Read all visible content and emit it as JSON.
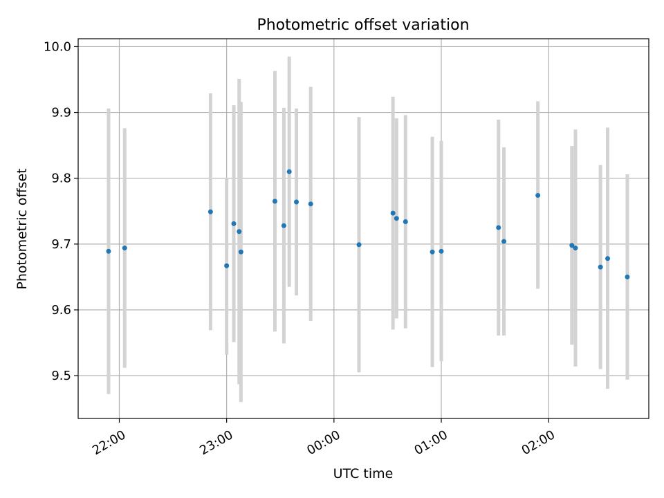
{
  "chart_data": {
    "type": "scatter",
    "title": "Photometric offset variation",
    "xlabel": "UTC time",
    "ylabel": "Photometric offset",
    "grid": true,
    "colors": {
      "point": "#1f77b4",
      "errorbar": "#d3d3d3",
      "grid": "#b0b0b0"
    },
    "xlim": [
      "21:37",
      "02:56"
    ],
    "ylim": [
      9.435,
      10.012
    ],
    "x_ticks": [
      "22:00",
      "23:00",
      "00:00",
      "01:00",
      "02:00"
    ],
    "y_ticks": [
      "9.5",
      "9.6",
      "9.7",
      "9.8",
      "9.9",
      "10.0"
    ],
    "points": [
      {
        "x": "21:54",
        "y": 9.689,
        "lo": 9.472,
        "hi": 9.906
      },
      {
        "x": "22:03",
        "y": 9.694,
        "lo": 9.512,
        "hi": 9.876
      },
      {
        "x": "22:51",
        "y": 9.749,
        "lo": 9.569,
        "hi": 9.929
      },
      {
        "x": "23:00",
        "y": 9.667,
        "lo": 9.532,
        "hi": 9.801
      },
      {
        "x": "23:04",
        "y": 9.731,
        "lo": 9.551,
        "hi": 9.911
      },
      {
        "x": "23:07",
        "y": 9.719,
        "lo": 9.487,
        "hi": 9.951
      },
      {
        "x": "23:08",
        "y": 9.688,
        "lo": 9.46,
        "hi": 9.916
      },
      {
        "x": "23:27",
        "y": 9.765,
        "lo": 9.567,
        "hi": 9.963
      },
      {
        "x": "23:32",
        "y": 9.728,
        "lo": 9.549,
        "hi": 9.907
      },
      {
        "x": "23:35",
        "y": 9.81,
        "lo": 9.635,
        "hi": 9.985
      },
      {
        "x": "23:39",
        "y": 9.764,
        "lo": 9.622,
        "hi": 9.906
      },
      {
        "x": "23:47",
        "y": 9.761,
        "lo": 9.583,
        "hi": 9.939
      },
      {
        "x": "00:14",
        "y": 9.699,
        "lo": 9.505,
        "hi": 9.893
      },
      {
        "x": "00:33",
        "y": 9.747,
        "lo": 9.57,
        "hi": 9.924
      },
      {
        "x": "00:35",
        "y": 9.739,
        "lo": 9.587,
        "hi": 9.891
      },
      {
        "x": "00:40",
        "y": 9.734,
        "lo": 9.572,
        "hi": 9.896
      },
      {
        "x": "00:55",
        "y": 9.688,
        "lo": 9.513,
        "hi": 9.863
      },
      {
        "x": "01:00",
        "y": 9.689,
        "lo": 9.522,
        "hi": 9.857
      },
      {
        "x": "01:32",
        "y": 9.725,
        "lo": 9.561,
        "hi": 9.889
      },
      {
        "x": "01:35",
        "y": 9.704,
        "lo": 9.561,
        "hi": 9.847
      },
      {
        "x": "01:54",
        "y": 9.774,
        "lo": 9.632,
        "hi": 9.917
      },
      {
        "x": "02:13",
        "y": 9.698,
        "lo": 9.547,
        "hi": 9.849
      },
      {
        "x": "02:15",
        "y": 9.694,
        "lo": 9.514,
        "hi": 9.874
      },
      {
        "x": "02:29",
        "y": 9.665,
        "lo": 9.51,
        "hi": 9.82
      },
      {
        "x": "02:33",
        "y": 9.678,
        "lo": 9.48,
        "hi": 9.877
      },
      {
        "x": "02:44",
        "y": 9.65,
        "lo": 9.494,
        "hi": 9.806
      }
    ]
  }
}
